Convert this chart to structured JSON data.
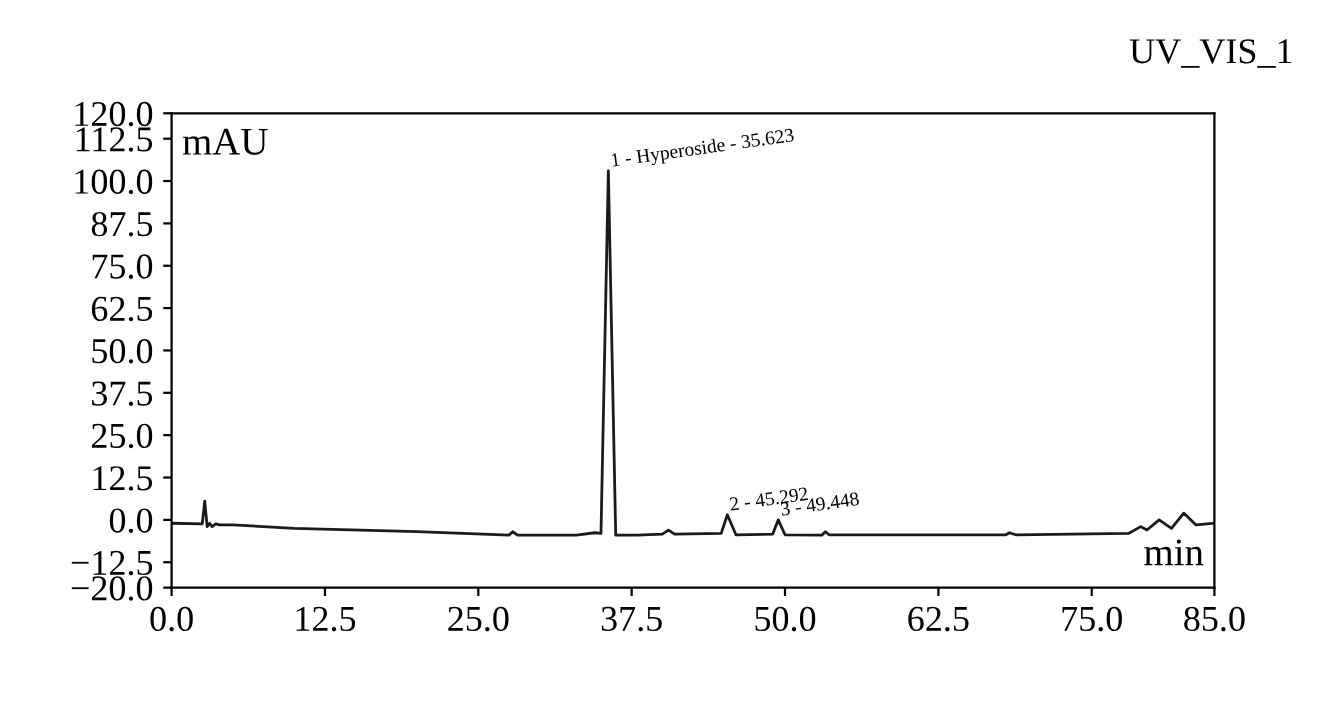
{
  "chart_data": {
    "type": "line",
    "title": "UV_VIS_1",
    "xlabel": "min",
    "ylabel": "mAU",
    "x": [
      0,
      2.5,
      2.7,
      2.9,
      3.1,
      3.3,
      3.6,
      3.9,
      5,
      10,
      20,
      27.5,
      27.8,
      28.2,
      33,
      34.5,
      35,
      35.6,
      36.2,
      38,
      40,
      40.5,
      41,
      44.8,
      45.3,
      46,
      49,
      49.45,
      50,
      53,
      53.3,
      53.6,
      68,
      68.3,
      68.8,
      78,
      79,
      79.5,
      80.5,
      81.5,
      82.5,
      83.5,
      85
    ],
    "series": [
      {
        "color": "#1a1a1a",
        "values": [
          -1,
          -1.2,
          5.5,
          -2,
          -1,
          -2,
          -1.2,
          -1.5,
          -1.5,
          -2.5,
          -3.5,
          -4.5,
          -3.5,
          -4.5,
          -4.5,
          -3.8,
          -4,
          103,
          -4.5,
          -4.5,
          -4.2,
          -3,
          -4.2,
          -4,
          1.5,
          -4.4,
          -4.2,
          0,
          -4.4,
          -4.5,
          -3.5,
          -4.4,
          -4.4,
          -3.8,
          -4.4,
          -4,
          -2,
          -3,
          0,
          -2.5,
          2,
          -1.5,
          -1
        ]
      }
    ],
    "annotations": [
      {
        "text": "1 - Hyperoside - 35.623",
        "x": 35.6,
        "y": 103
      },
      {
        "text": "2 - 45.292",
        "x": 45.3,
        "y": 1.5
      },
      {
        "text": "3 - 49.448",
        "x": 49.45,
        "y": 0
      }
    ],
    "xlim": [
      0,
      85
    ],
    "ylim": [
      -20,
      120
    ],
    "xticks": [
      {
        "value": 0,
        "label": "0.0"
      },
      12.5,
      {
        "value": 25,
        "label": "25.0"
      },
      37.5,
      {
        "value": 50,
        "label": "50.0"
      },
      62.5,
      {
        "value": 75,
        "label": "75.0"
      },
      {
        "value": 85,
        "label": "85.0"
      }
    ],
    "yticks": [
      {
        "value": 120,
        "label": "120.0"
      },
      112.5,
      {
        "value": 100,
        "label": "100.0"
      },
      87.5,
      {
        "value": 75,
        "label": "75.0"
      },
      62.5,
      {
        "value": 50,
        "label": "50.0"
      },
      37.5,
      {
        "value": 25,
        "label": "25.0"
      },
      12.5,
      {
        "value": 0,
        "label": "0.0"
      },
      {
        "value": -12.5,
        "label": "−12.5"
      },
      {
        "value": -20,
        "label": "−20.0"
      }
    ],
    "grid": false,
    "legend": false
  }
}
